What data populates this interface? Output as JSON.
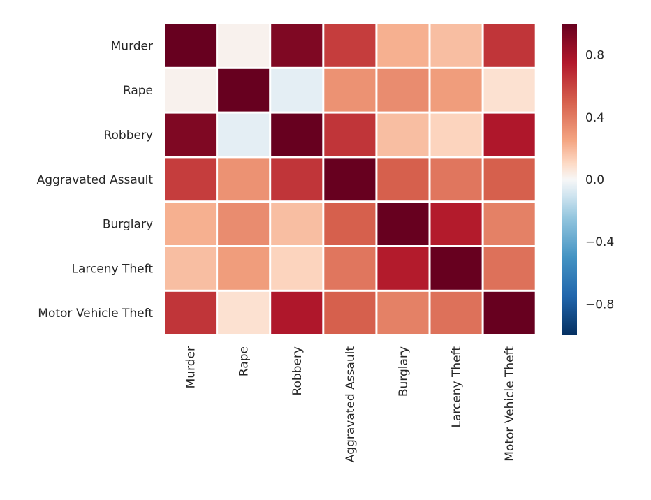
{
  "chart_data": {
    "type": "heatmap",
    "title": "",
    "xlabel": "",
    "ylabel": "",
    "rows": [
      "Murder",
      "Rape",
      "Robbery",
      "Aggravated Assault",
      "Burglary",
      "Larceny Theft",
      "Motor Vehicle Theft"
    ],
    "columns": [
      "Murder",
      "Rape",
      "Robbery",
      "Aggravated Assault",
      "Burglary",
      "Larceny Theft",
      "Motor Vehicle Theft"
    ],
    "values": [
      [
        1.0,
        0.02,
        0.92,
        0.62,
        0.22,
        0.18,
        0.65
      ],
      [
        0.02,
        1.0,
        -0.05,
        0.32,
        0.34,
        0.28,
        0.08
      ],
      [
        0.92,
        -0.05,
        1.0,
        0.65,
        0.18,
        0.12,
        0.76
      ],
      [
        0.62,
        0.32,
        0.65,
        1.0,
        0.5,
        0.42,
        0.5
      ],
      [
        0.22,
        0.34,
        0.18,
        0.5,
        1.0,
        0.74,
        0.38
      ],
      [
        0.18,
        0.28,
        0.12,
        0.42,
        0.74,
        1.0,
        0.44
      ],
      [
        0.65,
        0.08,
        0.76,
        0.5,
        0.38,
        0.44,
        1.0
      ]
    ],
    "value_range": [
      -1,
      1
    ],
    "colormap": "RdBu_r",
    "colorbar": {
      "ticks": [
        0.8,
        0.4,
        0.0,
        -0.4,
        -0.8
      ],
      "tick_labels": [
        "0.8",
        "0.4",
        "0.0",
        "−0.4",
        "−0.8"
      ]
    },
    "grid": false,
    "cell_border_color": "#ffffff"
  }
}
